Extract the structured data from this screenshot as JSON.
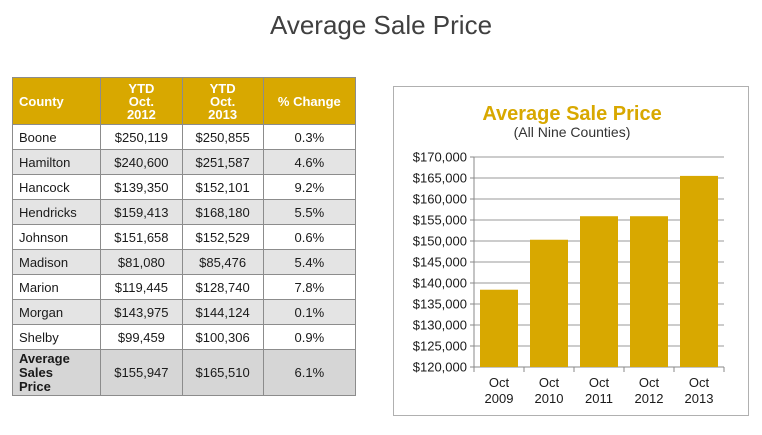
{
  "page_title": "Average Sale Price",
  "table": {
    "headers": [
      {
        "lines": [
          "County"
        ]
      },
      {
        "lines": [
          "YTD",
          "Oct.",
          "2012"
        ]
      },
      {
        "lines": [
          "YTD",
          "Oct.",
          "2013"
        ]
      },
      {
        "lines": [
          "% Change"
        ]
      }
    ],
    "rows": [
      {
        "county": "Boone",
        "ytd_2012": "$250,119",
        "ytd_2013": "$250,855",
        "change": "0.3%"
      },
      {
        "county": "Hamilton",
        "ytd_2012": "$240,600",
        "ytd_2013": "$251,587",
        "change": "4.6%"
      },
      {
        "county": "Hancock",
        "ytd_2012": "$139,350",
        "ytd_2013": "$152,101",
        "change": "9.2%"
      },
      {
        "county": "Hendricks",
        "ytd_2012": "$159,413",
        "ytd_2013": "$168,180",
        "change": "5.5%"
      },
      {
        "county": "Johnson",
        "ytd_2012": "$151,658",
        "ytd_2013": "$152,529",
        "change": "0.6%"
      },
      {
        "county": "Madison",
        "ytd_2012": "$81,080",
        "ytd_2013": "$85,476",
        "change": "5.4%"
      },
      {
        "county": "Marion",
        "ytd_2012": "$119,445",
        "ytd_2013": "$128,740",
        "change": "7.8%"
      },
      {
        "county": "Morgan",
        "ytd_2012": "$143,975",
        "ytd_2013": "$144,124",
        "change": "0.1%"
      },
      {
        "county": "Shelby",
        "ytd_2012": "$99,459",
        "ytd_2013": "$100,306",
        "change": "0.9%"
      }
    ],
    "total": {
      "label_lines": [
        "Average",
        "Sales",
        "Price"
      ],
      "ytd_2012": "$155,947",
      "ytd_2013": "$165,510",
      "change": "6.1%"
    }
  },
  "colors": {
    "accent": "#d8a800",
    "shade": "#e4e4e4",
    "total_shade": "#d6d6d6"
  },
  "chart_data": {
    "type": "bar",
    "title": "Average Sale Price",
    "subtitle": "(All Nine Counties)",
    "categories": [
      [
        "Oct",
        "2009"
      ],
      [
        "Oct",
        "2010"
      ],
      [
        "Oct",
        "2011"
      ],
      [
        "Oct",
        "2012"
      ],
      [
        "Oct",
        "2013"
      ]
    ],
    "values": [
      138400,
      150300,
      155900,
      155900,
      165500
    ],
    "ylim": [
      120000,
      170000
    ],
    "yticks": [
      120000,
      125000,
      130000,
      135000,
      140000,
      145000,
      150000,
      155000,
      160000,
      165000,
      170000
    ],
    "ytick_labels": [
      "$120,000",
      "$125,000",
      "$130,000",
      "$135,000",
      "$140,000",
      "$145,000",
      "$150,000",
      "$155,000",
      "$160,000",
      "$165,000",
      "$170,000"
    ],
    "grid": true,
    "bar_color": "#d8a800",
    "title_color": "#d8a800"
  }
}
